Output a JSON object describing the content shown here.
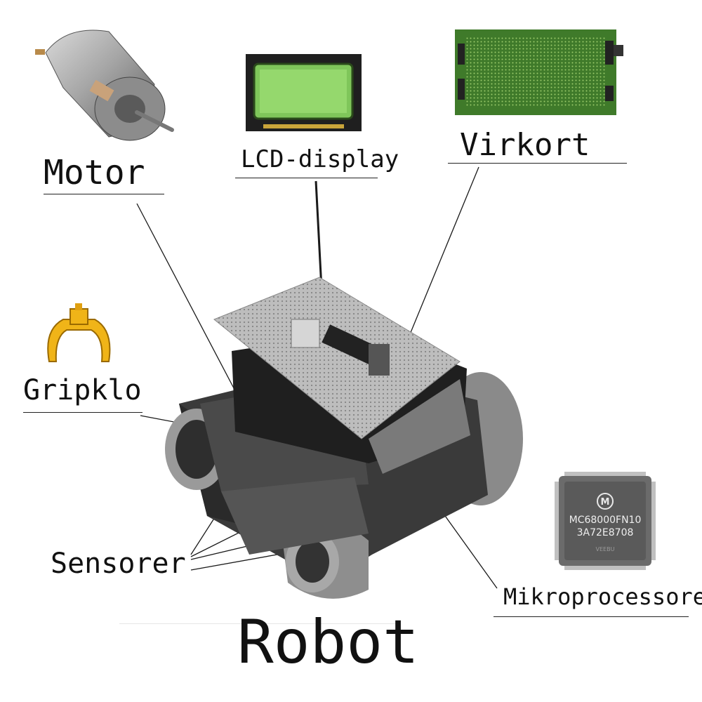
{
  "labels": {
    "motor": "Motor",
    "lcd": "LCD-display",
    "virkort": "Virkort",
    "gripklo": "Gripklo",
    "sensorer": "Sensorer",
    "mikroprocessorer": "Mikroprocessorer",
    "robot": "Robot"
  },
  "chip": {
    "line1": "MC68000FN10",
    "line2": "3A72E8708",
    "line3": "VEEBU",
    "logo": "M"
  },
  "icons": [
    "motor-icon",
    "lcd-display-icon",
    "circuit-board-icon",
    "gripper-claw-icon",
    "microprocessor-chip-icon",
    "robot-photo"
  ],
  "colors": {
    "pcb_green": "#3f7a2a",
    "lcd_green": "#7fc65a",
    "claw_yellow": "#f0b418",
    "chip_gray": "#6b6b6b"
  }
}
